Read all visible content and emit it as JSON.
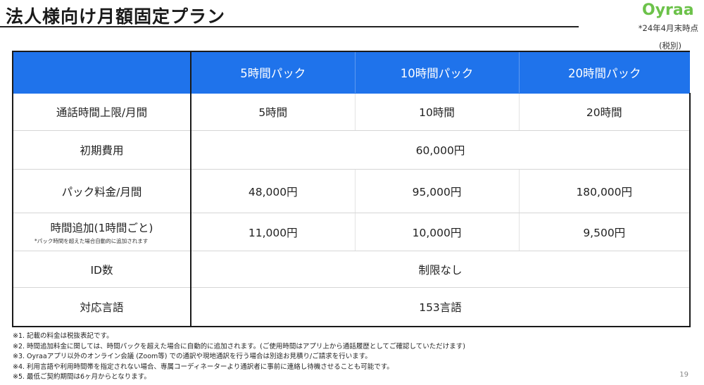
{
  "header": {
    "title": "法人様向け月額固定プラン",
    "logo": "Oyraa",
    "as_of": "*24年4月末時点",
    "tax_note": "(税別)"
  },
  "table": {
    "columns": [
      "5時間パック",
      "10時間パック",
      "20時間パック"
    ],
    "rows": {
      "call_limit": {
        "label": "通話時間上限/月間",
        "values": [
          "5時間",
          "10時間",
          "20時間"
        ]
      },
      "initial_fee": {
        "label": "初期費用",
        "value": "60,000円"
      },
      "pack_fee": {
        "label": "パック料金/月間",
        "values": [
          "48,000円",
          "95,000円",
          "180,000円"
        ]
      },
      "additional": {
        "label": "時間追加(1時間ごと)",
        "sublabel": "*パック時間を超えた場合自動的に追加されます",
        "values": [
          "11,000円",
          "10,000円",
          "9,500円"
        ]
      },
      "id_count": {
        "label": "ID数",
        "value": "制限なし"
      },
      "languages": {
        "label": "対応言語",
        "value": "153言語"
      }
    }
  },
  "notes": [
    "※1. 記載の料金は税抜表記です。",
    "※2. 時間追加料金に関しては、時間パックを超えた場合に自動的に追加されます。(ご使用時間はアプリ上から通話履歴としてご確認していただけます)",
    "※3. Oyraaアプリ以外のオンライン会議 (Zoom等) での通訳や現地通訳を行う場合は別途お見積り/ご請求を行います。",
    "※4. 利用言語や利用時間帯を指定されない場合、専属コーディネーターより通訳者に事前に連絡し待機させることも可能です。",
    "※5. 最低ご契約期間は6ヶ月からとなります。"
  ],
  "page_number": "19",
  "colors": {
    "header_bg": "#1f73eb",
    "logo": "#6cc24a"
  }
}
